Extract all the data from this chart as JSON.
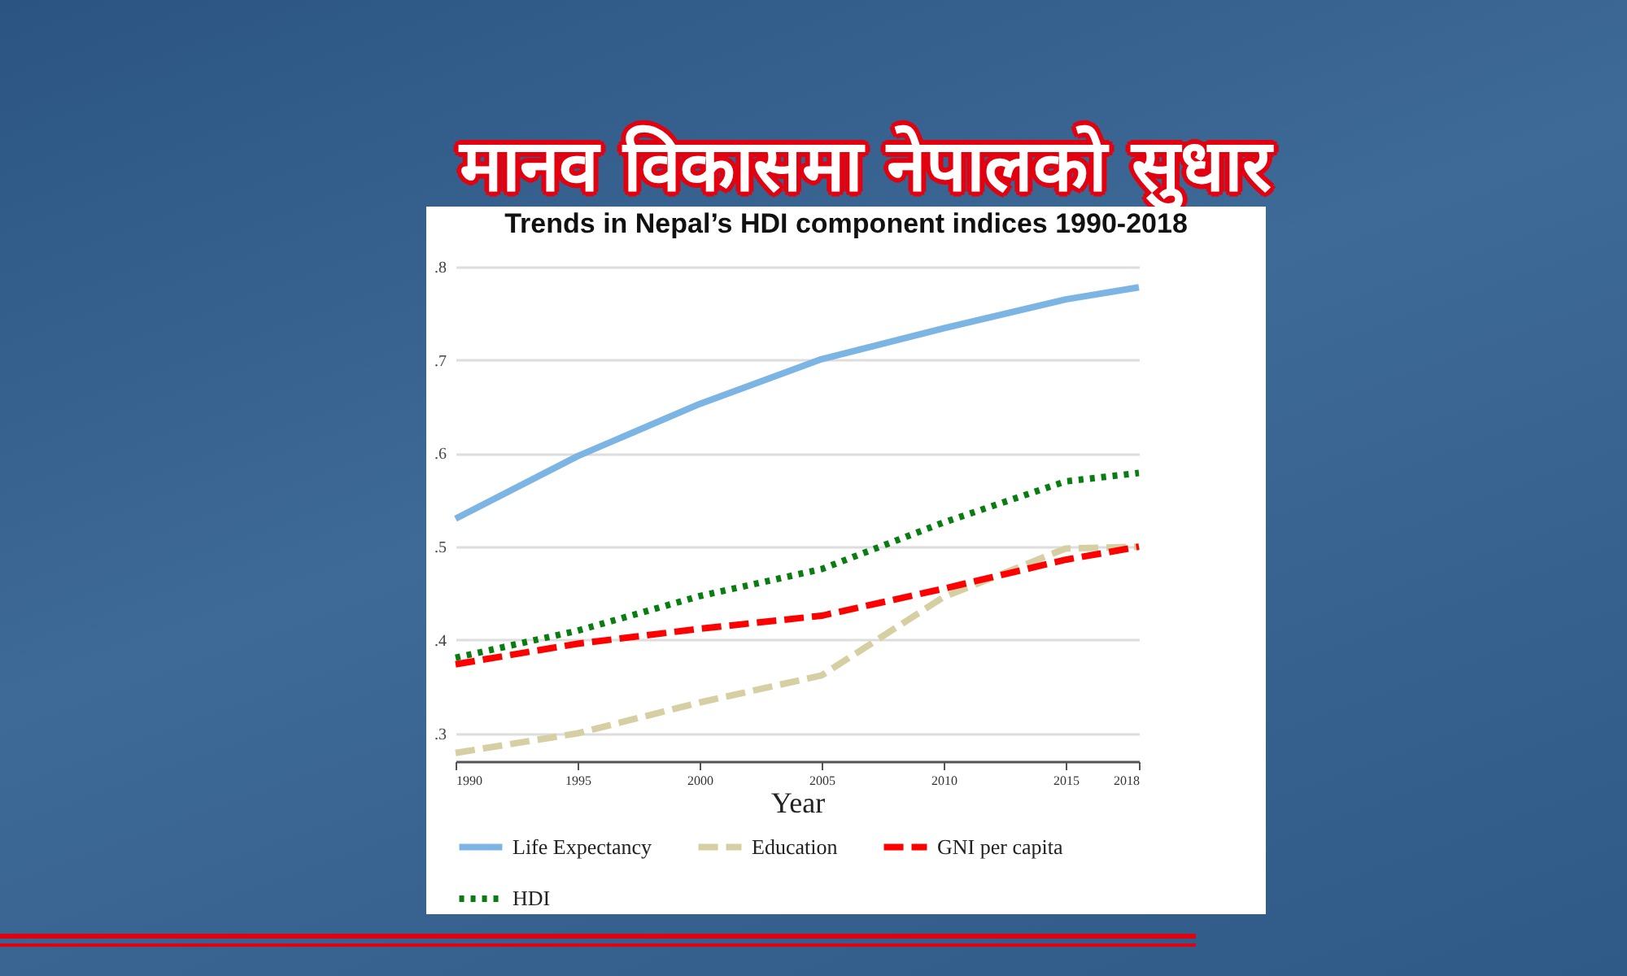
{
  "chart_data": {
    "type": "line",
    "title": "मानव विकासमा नेपालको सुधार",
    "subtitle": "Trends in Nepal’s HDI component indices 1990-2018",
    "xlabel": "Year",
    "x": [
      1990,
      1995,
      2000,
      2005,
      2010,
      2015,
      2018
    ],
    "xlim": [
      1990,
      2018
    ],
    "xticks": [
      1990,
      1995,
      2000,
      2005,
      2010,
      2015,
      2018
    ],
    "ylim": [
      0.27,
      0.8
    ],
    "yticks": [
      {
        "value": 0.3,
        "label": ".3"
      },
      {
        "value": 0.4,
        "label": ".4"
      },
      {
        "value": 0.5,
        "label": ".5"
      },
      {
        "value": 0.6,
        "label": ".6"
      },
      {
        "value": 0.7,
        "label": ".7"
      },
      {
        "value": 0.8,
        "label": ".8"
      }
    ],
    "grid": "y",
    "legend": "bottom",
    "series": [
      {
        "name": "Life Expectancy",
        "color": "#7cb5e4",
        "line_style": "solid",
        "values": [
          0.53,
          0.597,
          0.653,
          0.701,
          0.734,
          0.765,
          0.778
        ]
      },
      {
        "name": "Education",
        "color": "#d6cfa3",
        "line_style": "dashed",
        "values": [
          0.279,
          0.3,
          0.333,
          0.362,
          0.446,
          0.498,
          0.5
        ]
      },
      {
        "name": "GNI per capita",
        "color": "#ff0000",
        "line_style": "dashed",
        "values": [
          0.374,
          0.396,
          0.412,
          0.426,
          0.455,
          0.486,
          0.5
        ]
      },
      {
        "name": "HDI",
        "color": "#0a7d12",
        "line_style": "dotted",
        "values": [
          0.381,
          0.41,
          0.447,
          0.476,
          0.526,
          0.57,
          0.579
        ]
      }
    ]
  }
}
